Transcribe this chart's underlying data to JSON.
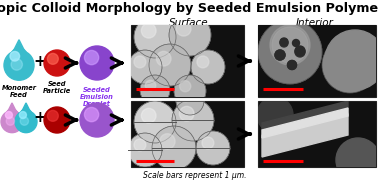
{
  "title": "Anisotropic Colloid Morphology by Seeded Emulsion Polymerization",
  "title_fontsize": 9.2,
  "title_fontweight": "bold",
  "background_color": "#ffffff",
  "label_monomer": "Monomer\nFeed",
  "label_seed": "Seed\nParticle",
  "label_droplet": "Seeded\nEmulsion\nDroplet",
  "label_surface": "Surface",
  "label_interior": "Interior",
  "label_scalebar": "Scale bars represent 1 μm.",
  "arrow_color": "#111111",
  "scalebar_color": "#ff0000"
}
